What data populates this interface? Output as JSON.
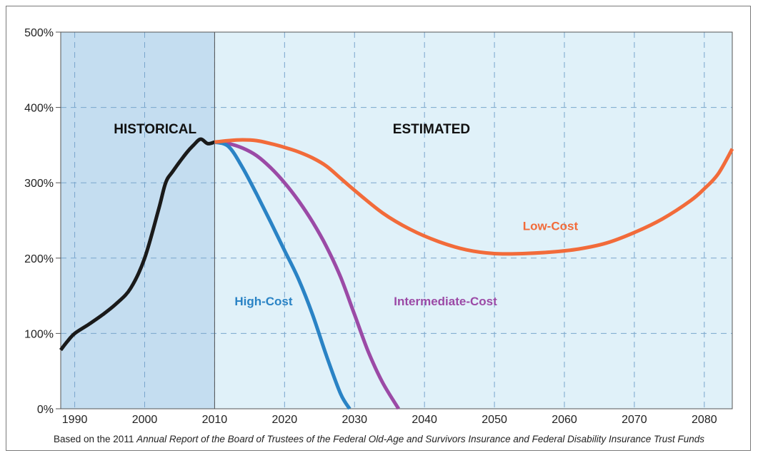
{
  "chart_data": {
    "type": "line",
    "xlim": [
      1988,
      2084
    ],
    "ylim": [
      0,
      500
    ],
    "x_ticks": [
      1990,
      2000,
      2010,
      2020,
      2030,
      2040,
      2050,
      2060,
      2070,
      2080
    ],
    "y_ticks": [
      0,
      100,
      200,
      300,
      400,
      500
    ],
    "y_tick_labels": [
      "0%",
      "100%",
      "200%",
      "300%",
      "400%",
      "500%"
    ],
    "grid": true,
    "regions": [
      {
        "label": "HISTORICAL",
        "x_start": 1988,
        "x_end": 2010,
        "color": "#c4ddf0"
      },
      {
        "label": "ESTIMATED",
        "x_start": 2010,
        "x_end": 2084,
        "color": "#e0f1f9"
      }
    ],
    "series": [
      {
        "key": "historical",
        "color": "#1a1a1a",
        "x": [
          1988,
          1989,
          1990,
          1992,
          1994,
          1996,
          1998,
          2000,
          2002,
          2003,
          2004,
          2006,
          2007,
          2008,
          2009,
          2010
        ],
        "y": [
          78,
          90,
          100,
          112,
          125,
          140,
          160,
          200,
          265,
          300,
          315,
          340,
          350,
          358,
          352,
          354
        ]
      },
      {
        "key": "low",
        "name": "Low-Cost",
        "color": "#f26b3a",
        "x": [
          2010,
          2012,
          2014,
          2016,
          2018,
          2020,
          2022,
          2024,
          2026,
          2028,
          2030,
          2034,
          2038,
          2042,
          2046,
          2050,
          2054,
          2058,
          2062,
          2066,
          2070,
          2074,
          2078,
          2080,
          2082,
          2084
        ],
        "y": [
          354,
          356,
          357,
          356,
          352,
          347,
          341,
          333,
          322,
          306,
          290,
          260,
          238,
          222,
          211,
          206,
          206,
          208,
          212,
          220,
          234,
          252,
          276,
          292,
          312,
          345
        ]
      },
      {
        "key": "intermediate",
        "name": "Intermediate-Cost",
        "color": "#9b4aa6",
        "x": [
          2010,
          2012,
          2014,
          2016,
          2018,
          2020,
          2022,
          2024,
          2026,
          2028,
          2030,
          2032,
          2034,
          2036.3
        ],
        "y": [
          354,
          352,
          346,
          336,
          320,
          300,
          276,
          248,
          215,
          175,
          125,
          75,
          35,
          0
        ]
      },
      {
        "key": "high",
        "name": "High-Cost",
        "color": "#2a83c5",
        "x": [
          2010,
          2012,
          2014,
          2016,
          2018,
          2020,
          2022,
          2024,
          2026,
          2028,
          2029.3
        ],
        "y": [
          354,
          348,
          320,
          285,
          248,
          210,
          172,
          125,
          70,
          20,
          0
        ]
      }
    ],
    "series_labels": [
      {
        "key": "low",
        "text": "Low-Cost",
        "x": 2058,
        "y": 243
      },
      {
        "key": "intermediate",
        "text": "Intermediate-Cost",
        "x": 2043,
        "y": 143
      },
      {
        "key": "high",
        "text": "High-Cost",
        "x": 2017,
        "y": 143
      }
    ],
    "region_labels": [
      {
        "text": "HISTORICAL",
        "x": 2001.5,
        "y": 372
      },
      {
        "text": "ESTIMATED",
        "x": 2041,
        "y": 372
      }
    ]
  },
  "caption": {
    "prefix": "Based on the 2011 ",
    "italic": "Annual Report of the Board of Trustees of the Federal Old-Age and Survivors Insurance and Federal Disability Insurance Trust Funds"
  }
}
